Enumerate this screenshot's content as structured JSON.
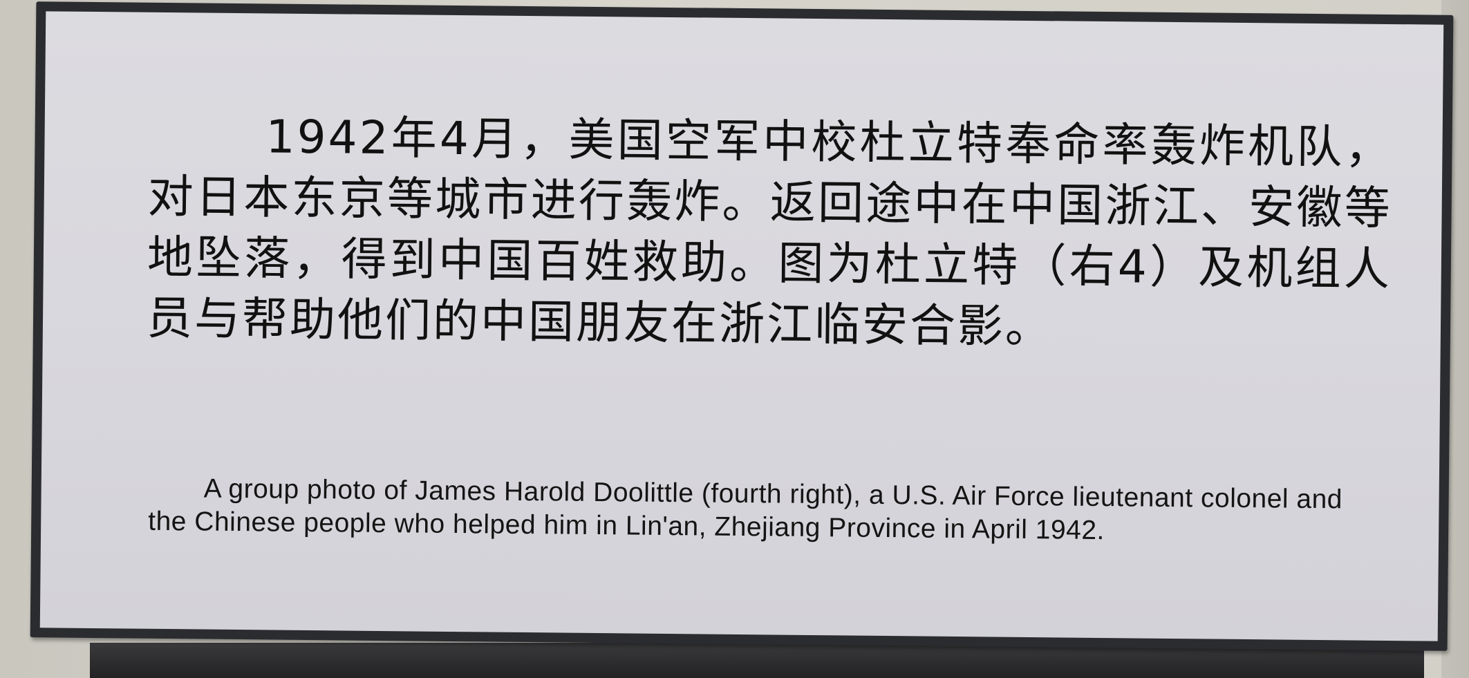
{
  "placard": {
    "chinese_caption": "1942年4月，美国空军中校杜立特奉命率轰炸机队，对日本东京等城市进行轰炸。返回途中在中国浙江、安徽等地坠落，得到中国百姓救助。图为杜立特（右4）及机组人员与帮助他们的中国朋友在浙江临安合影。",
    "english_caption": "A group photo of James Harold Doolittle (fourth right), a U.S. Air Force lieutenant colonel and the Chinese people who helped him in Lin'an, Zhejiang Province in April 1942."
  },
  "colors": {
    "placard_background": "#d9d8de",
    "frame": "#2b2c30",
    "text": "#111111",
    "wall": "#d2d0c7"
  }
}
